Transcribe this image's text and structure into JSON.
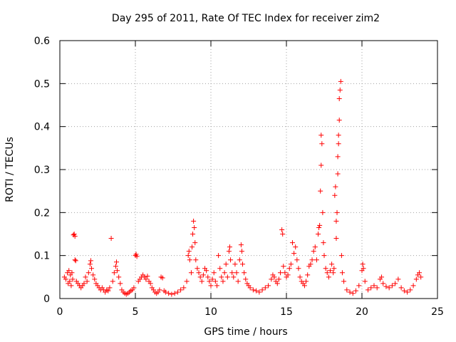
{
  "chart_data": {
    "type": "scatter",
    "title": "Day 295 of 2011, Rate Of TEC Index for receiver zim2",
    "xlabel": "GPS time / hours",
    "ylabel": "ROTI / TECUs",
    "xlim": [
      0,
      25
    ],
    "ylim": [
      0,
      0.6
    ],
    "xticks": [
      0,
      5,
      10,
      15,
      20,
      25
    ],
    "xtick_labels": [
      "0",
      "5",
      "10",
      "15",
      "20",
      "25"
    ],
    "yticks": [
      0,
      0.1,
      0.2,
      0.3,
      0.4,
      0.5,
      0.6
    ],
    "ytick_labels": [
      "0",
      "0.1",
      "0.2",
      "0.3",
      "0.4",
      "0.5",
      "0.6"
    ],
    "grid": true,
    "marker": "+",
    "color": "#ff0000",
    "series": [
      {
        "points": [
          [
            0.3,
            0.05
          ],
          [
            0.4,
            0.045
          ],
          [
            0.5,
            0.06
          ],
          [
            0.55,
            0.035
          ],
          [
            0.6,
            0.065
          ],
          [
            0.65,
            0.04
          ],
          [
            0.7,
            0.055
          ],
          [
            0.75,
            0.03
          ],
          [
            0.8,
            0.06
          ],
          [
            0.85,
            0.045
          ],
          [
            0.9,
            0.148
          ],
          [
            0.95,
            0.15
          ],
          [
            1.0,
            0.145
          ],
          [
            1.0,
            0.09
          ],
          [
            1.05,
            0.088
          ],
          [
            1.1,
            0.04
          ],
          [
            1.2,
            0.035
          ],
          [
            1.3,
            0.03
          ],
          [
            1.4,
            0.025
          ],
          [
            1.5,
            0.03
          ],
          [
            1.6,
            0.035
          ],
          [
            1.7,
            0.05
          ],
          [
            1.8,
            0.04
          ],
          [
            1.9,
            0.06
          ],
          [
            2.0,
            0.08
          ],
          [
            2.05,
            0.088
          ],
          [
            2.1,
            0.07
          ],
          [
            2.2,
            0.055
          ],
          [
            2.3,
            0.045
          ],
          [
            2.4,
            0.035
          ],
          [
            2.5,
            0.03
          ],
          [
            2.6,
            0.025
          ],
          [
            2.7,
            0.02
          ],
          [
            2.8,
            0.025
          ],
          [
            2.9,
            0.02
          ],
          [
            3.0,
            0.015
          ],
          [
            3.1,
            0.02
          ],
          [
            3.2,
            0.018
          ],
          [
            3.3,
            0.025
          ],
          [
            3.4,
            0.14
          ],
          [
            3.5,
            0.04
          ],
          [
            3.6,
            0.06
          ],
          [
            3.7,
            0.075
          ],
          [
            3.75,
            0.085
          ],
          [
            3.8,
            0.065
          ],
          [
            3.9,
            0.05
          ],
          [
            4.0,
            0.035
          ],
          [
            4.1,
            0.02
          ],
          [
            4.2,
            0.015
          ],
          [
            4.3,
            0.012
          ],
          [
            4.4,
            0.01
          ],
          [
            4.5,
            0.012
          ],
          [
            4.6,
            0.015
          ],
          [
            4.7,
            0.018
          ],
          [
            4.8,
            0.02
          ],
          [
            4.9,
            0.025
          ],
          [
            5.0,
            0.1
          ],
          [
            5.05,
            0.103
          ],
          [
            5.1,
            0.098
          ],
          [
            5.2,
            0.04
          ],
          [
            5.3,
            0.045
          ],
          [
            5.4,
            0.05
          ],
          [
            5.5,
            0.055
          ],
          [
            5.6,
            0.05
          ],
          [
            5.7,
            0.045
          ],
          [
            5.8,
            0.052
          ],
          [
            5.9,
            0.04
          ],
          [
            6.0,
            0.035
          ],
          [
            6.1,
            0.025
          ],
          [
            6.2,
            0.02
          ],
          [
            6.3,
            0.015
          ],
          [
            6.4,
            0.012
          ],
          [
            6.5,
            0.015
          ],
          [
            6.6,
            0.02
          ],
          [
            6.7,
            0.05
          ],
          [
            6.8,
            0.048
          ],
          [
            6.9,
            0.018
          ],
          [
            7.0,
            0.015
          ],
          [
            7.2,
            0.012
          ],
          [
            7.4,
            0.01
          ],
          [
            7.6,
            0.012
          ],
          [
            7.8,
            0.015
          ],
          [
            8.0,
            0.02
          ],
          [
            8.2,
            0.025
          ],
          [
            8.4,
            0.04
          ],
          [
            8.5,
            0.1
          ],
          [
            8.55,
            0.11
          ],
          [
            8.6,
            0.09
          ],
          [
            8.7,
            0.06
          ],
          [
            8.75,
            0.12
          ],
          [
            8.8,
            0.15
          ],
          [
            8.85,
            0.18
          ],
          [
            8.9,
            0.165
          ],
          [
            8.95,
            0.13
          ],
          [
            9.0,
            0.09
          ],
          [
            9.1,
            0.07
          ],
          [
            9.2,
            0.06
          ],
          [
            9.3,
            0.05
          ],
          [
            9.4,
            0.04
          ],
          [
            9.5,
            0.055
          ],
          [
            9.6,
            0.07
          ],
          [
            9.7,
            0.065
          ],
          [
            9.8,
            0.05
          ],
          [
            9.9,
            0.04
          ],
          [
            10.0,
            0.03
          ],
          [
            10.1,
            0.045
          ],
          [
            10.2,
            0.06
          ],
          [
            10.3,
            0.04
          ],
          [
            10.4,
            0.03
          ],
          [
            10.5,
            0.1
          ],
          [
            10.6,
            0.07
          ],
          [
            10.7,
            0.05
          ],
          [
            10.8,
            0.04
          ],
          [
            10.9,
            0.06
          ],
          [
            11.0,
            0.08
          ],
          [
            11.1,
            0.05
          ],
          [
            11.2,
            0.11
          ],
          [
            11.25,
            0.12
          ],
          [
            11.3,
            0.09
          ],
          [
            11.4,
            0.06
          ],
          [
            11.5,
            0.05
          ],
          [
            11.6,
            0.08
          ],
          [
            11.7,
            0.06
          ],
          [
            11.8,
            0.04
          ],
          [
            11.9,
            0.09
          ],
          [
            12.0,
            0.125
          ],
          [
            12.05,
            0.11
          ],
          [
            12.1,
            0.08
          ],
          [
            12.2,
            0.06
          ],
          [
            12.3,
            0.045
          ],
          [
            12.4,
            0.035
          ],
          [
            12.5,
            0.03
          ],
          [
            12.6,
            0.025
          ],
          [
            12.8,
            0.02
          ],
          [
            13.0,
            0.018
          ],
          [
            13.2,
            0.015
          ],
          [
            13.4,
            0.02
          ],
          [
            13.6,
            0.025
          ],
          [
            13.8,
            0.03
          ],
          [
            14.0,
            0.045
          ],
          [
            14.1,
            0.055
          ],
          [
            14.2,
            0.05
          ],
          [
            14.3,
            0.04
          ],
          [
            14.4,
            0.035
          ],
          [
            14.5,
            0.045
          ],
          [
            14.6,
            0.06
          ],
          [
            14.7,
            0.16
          ],
          [
            14.75,
            0.15
          ],
          [
            14.8,
            0.075
          ],
          [
            14.9,
            0.06
          ],
          [
            15.0,
            0.05
          ],
          [
            15.1,
            0.055
          ],
          [
            15.2,
            0.07
          ],
          [
            15.3,
            0.08
          ],
          [
            15.4,
            0.13
          ],
          [
            15.5,
            0.105
          ],
          [
            15.6,
            0.12
          ],
          [
            15.7,
            0.09
          ],
          [
            15.8,
            0.07
          ],
          [
            15.9,
            0.05
          ],
          [
            16.0,
            0.04
          ],
          [
            16.1,
            0.035
          ],
          [
            16.2,
            0.03
          ],
          [
            16.3,
            0.04
          ],
          [
            16.4,
            0.055
          ],
          [
            16.5,
            0.075
          ],
          [
            16.6,
            0.08
          ],
          [
            16.7,
            0.09
          ],
          [
            16.8,
            0.11
          ],
          [
            16.9,
            0.12
          ],
          [
            17.0,
            0.09
          ],
          [
            17.1,
            0.15
          ],
          [
            17.15,
            0.165
          ],
          [
            17.2,
            0.17
          ],
          [
            17.25,
            0.25
          ],
          [
            17.3,
            0.31
          ],
          [
            17.3,
            0.38
          ],
          [
            17.35,
            0.36
          ],
          [
            17.4,
            0.2
          ],
          [
            17.45,
            0.13
          ],
          [
            17.5,
            0.1
          ],
          [
            17.6,
            0.07
          ],
          [
            17.7,
            0.06
          ],
          [
            17.8,
            0.05
          ],
          [
            17.9,
            0.065
          ],
          [
            18.0,
            0.08
          ],
          [
            18.1,
            0.06
          ],
          [
            18.15,
            0.07
          ],
          [
            18.2,
            0.24
          ],
          [
            18.25,
            0.26
          ],
          [
            18.3,
            0.14
          ],
          [
            18.3,
            0.18
          ],
          [
            18.35,
            0.2
          ],
          [
            18.4,
            0.29
          ],
          [
            18.4,
            0.33
          ],
          [
            18.45,
            0.36
          ],
          [
            18.45,
            0.38
          ],
          [
            18.5,
            0.415
          ],
          [
            18.5,
            0.465
          ],
          [
            18.55,
            0.485
          ],
          [
            18.6,
            0.505
          ],
          [
            18.65,
            0.1
          ],
          [
            18.7,
            0.06
          ],
          [
            18.8,
            0.04
          ],
          [
            19.0,
            0.02
          ],
          [
            19.2,
            0.015
          ],
          [
            19.4,
            0.012
          ],
          [
            19.6,
            0.018
          ],
          [
            19.8,
            0.03
          ],
          [
            20.0,
            0.065
          ],
          [
            20.05,
            0.08
          ],
          [
            20.1,
            0.07
          ],
          [
            20.2,
            0.04
          ],
          [
            20.4,
            0.02
          ],
          [
            20.6,
            0.025
          ],
          [
            20.8,
            0.03
          ],
          [
            21.0,
            0.025
          ],
          [
            21.2,
            0.045
          ],
          [
            21.3,
            0.05
          ],
          [
            21.4,
            0.035
          ],
          [
            21.6,
            0.028
          ],
          [
            21.8,
            0.025
          ],
          [
            22.0,
            0.03
          ],
          [
            22.2,
            0.035
          ],
          [
            22.4,
            0.045
          ],
          [
            22.6,
            0.025
          ],
          [
            22.8,
            0.018
          ],
          [
            23.0,
            0.015
          ],
          [
            23.2,
            0.02
          ],
          [
            23.4,
            0.03
          ],
          [
            23.6,
            0.045
          ],
          [
            23.7,
            0.055
          ],
          [
            23.8,
            0.06
          ],
          [
            23.9,
            0.05
          ]
        ]
      }
    ]
  }
}
